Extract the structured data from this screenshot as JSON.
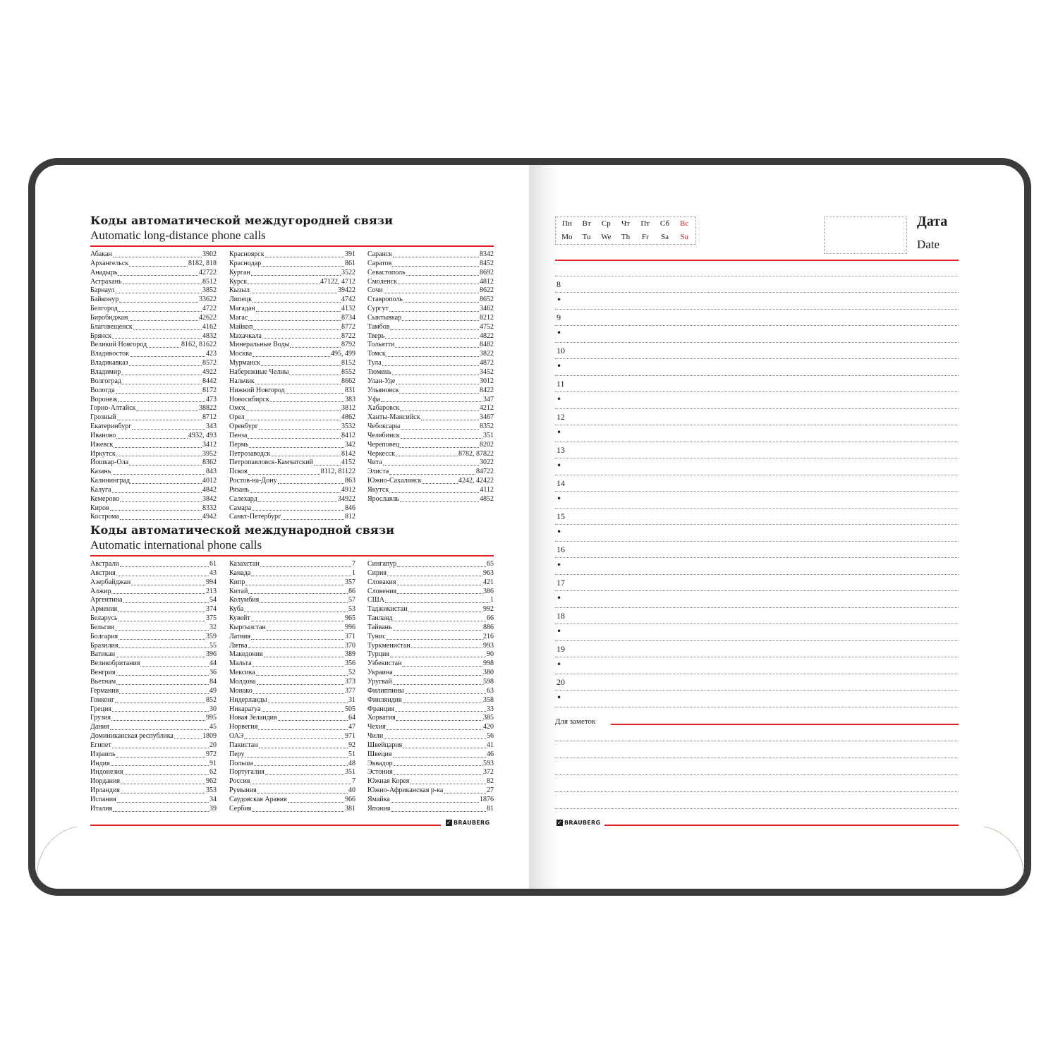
{
  "brand": "BRAUBERG",
  "colors": {
    "accent_red": "#e2202a",
    "cover": "#3b3b3d"
  },
  "left_page": {
    "domestic": {
      "title": "Коды автоматической междугородней связи",
      "subtitle": "Automatic long-distance phone calls",
      "columns": [
        [
          [
            "Абакан",
            "3902"
          ],
          [
            "Архангельск",
            "8182, 818"
          ],
          [
            "Анадырь",
            "42722"
          ],
          [
            "Астрахань",
            "8512"
          ],
          [
            "Барнаул",
            "3852"
          ],
          [
            "Байконур",
            "33622"
          ],
          [
            "Белгород",
            "4722"
          ],
          [
            "Биробиджан",
            "42622"
          ],
          [
            "Благовещенск",
            "4162"
          ],
          [
            "Брянск",
            "4832"
          ],
          [
            "Великий Новгород",
            "8162, 81622"
          ],
          [
            "Владивосток",
            "423"
          ],
          [
            "Владикавказ",
            "8572"
          ],
          [
            "Владимир",
            "4922"
          ],
          [
            "Волгоград",
            "8442"
          ],
          [
            "Вологда",
            "8172"
          ],
          [
            "Воронеж",
            "473"
          ],
          [
            "Горно-Алтайск",
            "38822"
          ],
          [
            "Грозный",
            "8712"
          ],
          [
            "Екатеринбург",
            "343"
          ],
          [
            "Иваново",
            "4932, 493"
          ],
          [
            "Ижевск",
            "3412"
          ],
          [
            "Иркутск",
            "3952"
          ],
          [
            "Йошкар-Ола",
            "8362"
          ],
          [
            "Казань",
            "843"
          ],
          [
            "Калининград",
            "4012"
          ],
          [
            "Калуга",
            "4842"
          ],
          [
            "Кемерово",
            "3842"
          ],
          [
            "Киров",
            "8332"
          ],
          [
            "Кострома",
            "4942"
          ]
        ],
        [
          [
            "Красноярск",
            "391"
          ],
          [
            "Краснодар",
            "861"
          ],
          [
            "Курган",
            "3522"
          ],
          [
            "Курск",
            "47122, 4712"
          ],
          [
            "Кызыл",
            "39422"
          ],
          [
            "Липецк",
            "4742"
          ],
          [
            "Магадан",
            "4132"
          ],
          [
            "Магас",
            "8734"
          ],
          [
            "Майкоп",
            "8772"
          ],
          [
            "Махачкала",
            "8722"
          ],
          [
            "Минеральные  Воды",
            "8792"
          ],
          [
            "Москва",
            "495, 499"
          ],
          [
            "Мурманск",
            "8152"
          ],
          [
            "Набережные Челны",
            "8552"
          ],
          [
            "Нальчик",
            "8662"
          ],
          [
            "Нижний Новгород",
            "831"
          ],
          [
            "Новосибирск",
            "383"
          ],
          [
            "Омск",
            "3812"
          ],
          [
            "Орел",
            "4862"
          ],
          [
            "Оренбург",
            "3532"
          ],
          [
            "Пенза",
            "8412"
          ],
          [
            "Пермь",
            "342"
          ],
          [
            "Петрозаводск",
            "8142"
          ],
          [
            "Петропавловск-Камчатский",
            "4152"
          ],
          [
            "Псков",
            "8112, 81122"
          ],
          [
            "Ростов-на-Дону",
            "863"
          ],
          [
            "Рязань",
            "4912"
          ],
          [
            "Салехард",
            "34922"
          ],
          [
            "Самара",
            "846"
          ],
          [
            "Санкт-Петербург",
            "812"
          ]
        ],
        [
          [
            "Саранск",
            "8342"
          ],
          [
            "Саратов",
            "8452"
          ],
          [
            "Севастополь",
            "8692"
          ],
          [
            "Смоленск",
            "4812"
          ],
          [
            "Сочи",
            "8622"
          ],
          [
            "Ставрополь",
            "8652"
          ],
          [
            "Сургут",
            "3462"
          ],
          [
            "Сыктывкар",
            "8212"
          ],
          [
            "Тамбов",
            "4752"
          ],
          [
            "Тверь",
            "4822"
          ],
          [
            "Тольятти",
            "8482"
          ],
          [
            "Томск",
            "3822"
          ],
          [
            "Тула",
            "4872"
          ],
          [
            "Тюмень",
            "3452"
          ],
          [
            "Улан-Уде",
            "3012"
          ],
          [
            "Ульяновск",
            "8422"
          ],
          [
            "Уфа",
            "347"
          ],
          [
            "Хабаровск",
            "4212"
          ],
          [
            "Ханты-Мансийск",
            "3467"
          ],
          [
            "Чебоксары",
            "8352"
          ],
          [
            "Челябинск",
            "351"
          ],
          [
            "Череповец",
            "8202"
          ],
          [
            "Черкесск",
            "8782, 87822"
          ],
          [
            "Чита",
            "3022"
          ],
          [
            "Элиста",
            "84722"
          ],
          [
            "Южно-Сахалинск",
            "4242, 42422"
          ],
          [
            "Якутск",
            "4112"
          ],
          [
            "Ярославль",
            "4852"
          ]
        ]
      ]
    },
    "international": {
      "title": "Коды автоматической международной связи",
      "subtitle": "Automatic international phone calls",
      "columns": [
        [
          [
            "Австрали",
            "61"
          ],
          [
            "Австрия",
            "43"
          ],
          [
            "Азербайджан",
            "994"
          ],
          [
            "Алжир",
            "213"
          ],
          [
            "Аргентина",
            "54"
          ],
          [
            "Армения",
            "374"
          ],
          [
            "Беларусь",
            "375"
          ],
          [
            "Бельгия",
            "32"
          ],
          [
            "Болгария",
            "359"
          ],
          [
            "Бразилия",
            "55"
          ],
          [
            "Ватикан",
            "396"
          ],
          [
            "Великобритания",
            "44"
          ],
          [
            "Венгрия",
            "36"
          ],
          [
            "Вьетнам",
            "84"
          ],
          [
            "Германия",
            "49"
          ],
          [
            "Гонконг",
            "852"
          ],
          [
            "Греция",
            "30"
          ],
          [
            "Грузия",
            "995"
          ],
          [
            "Дания",
            "45"
          ],
          [
            "Доминиканская республика",
            "1809"
          ],
          [
            "Египет",
            "20"
          ],
          [
            "Израиль",
            "972"
          ],
          [
            "Индия",
            "91"
          ],
          [
            "Индонезия",
            "62"
          ],
          [
            "Иордания",
            "962"
          ],
          [
            "Ирландия",
            "353"
          ],
          [
            "Испания",
            "34"
          ],
          [
            "Италия",
            "39"
          ]
        ],
        [
          [
            "Казахстан",
            "7"
          ],
          [
            "Канада",
            "1"
          ],
          [
            "Кипр",
            "357"
          ],
          [
            "Китай",
            "86"
          ],
          [
            "Колумбия",
            "57"
          ],
          [
            "Куба",
            "53"
          ],
          [
            "Кувейт",
            "965"
          ],
          [
            "Кыргызстан",
            "996"
          ],
          [
            "Латвия",
            "371"
          ],
          [
            "Литва",
            "370"
          ],
          [
            "Македония",
            "389"
          ],
          [
            "Мальта",
            "356"
          ],
          [
            "Мексика",
            "52"
          ],
          [
            "Молдова",
            "373"
          ],
          [
            "Монако",
            "377"
          ],
          [
            "Нидерланды",
            "31"
          ],
          [
            "Никарагуа",
            "505"
          ],
          [
            "Новая Зеландия",
            "64"
          ],
          [
            "Норвегия",
            "47"
          ],
          [
            "ОАЭ",
            "971"
          ],
          [
            "Пакистан",
            "92"
          ],
          [
            "Перу",
            "51"
          ],
          [
            "Польша",
            "48"
          ],
          [
            "Португалия",
            "351"
          ],
          [
            "Россия",
            "7"
          ],
          [
            "Румыния",
            "40"
          ],
          [
            "Саудовская Аравия",
            "966"
          ],
          [
            "Сербия",
            "381"
          ]
        ],
        [
          [
            "Сингапур",
            "65"
          ],
          [
            "Сирия",
            "963"
          ],
          [
            "Словакия",
            "421"
          ],
          [
            "Словения",
            "386"
          ],
          [
            "США",
            "1"
          ],
          [
            "Таджикистан",
            "992"
          ],
          [
            "Таиланд",
            "66"
          ],
          [
            "Тайвань",
            "886"
          ],
          [
            "Тунис",
            "216"
          ],
          [
            "Туркменистан",
            "993"
          ],
          [
            "Турция",
            "90"
          ],
          [
            "Узбекистан",
            "998"
          ],
          [
            "Украина",
            "380"
          ],
          [
            "Уругвай",
            "598"
          ],
          [
            "Филиппины",
            "63"
          ],
          [
            "Финляндия",
            "358"
          ],
          [
            "Франция",
            "33"
          ],
          [
            "Хорватия",
            "385"
          ],
          [
            "Чехия",
            "420"
          ],
          [
            "Чили",
            "56"
          ],
          [
            "Швейцария",
            "41"
          ],
          [
            "Швеция",
            "46"
          ],
          [
            "Эквадор",
            "593"
          ],
          [
            "Эстония",
            "372"
          ],
          [
            "Южная Корея",
            "82"
          ],
          [
            "Южно-Африканская р-ка",
            "27"
          ],
          [
            "Ямайка",
            "1876"
          ],
          [
            "Япония",
            "81"
          ]
        ]
      ]
    }
  },
  "right_page": {
    "weekdays_ru": [
      "Пн",
      "Вт",
      "Ср",
      "Чт",
      "Пт",
      "Сб",
      "Вс"
    ],
    "weekdays_en": [
      "Mo",
      "Tu",
      "We",
      "Th",
      "Fr",
      "Sa",
      "Su"
    ],
    "date_label_ru": "Дата",
    "date_label_en": "Date",
    "hours": [
      "8",
      "9",
      "10",
      "11",
      "12",
      "13",
      "14",
      "15",
      "16",
      "17",
      "18",
      "19",
      "20"
    ],
    "bullet": "•",
    "notes_label": "Для заметок"
  }
}
